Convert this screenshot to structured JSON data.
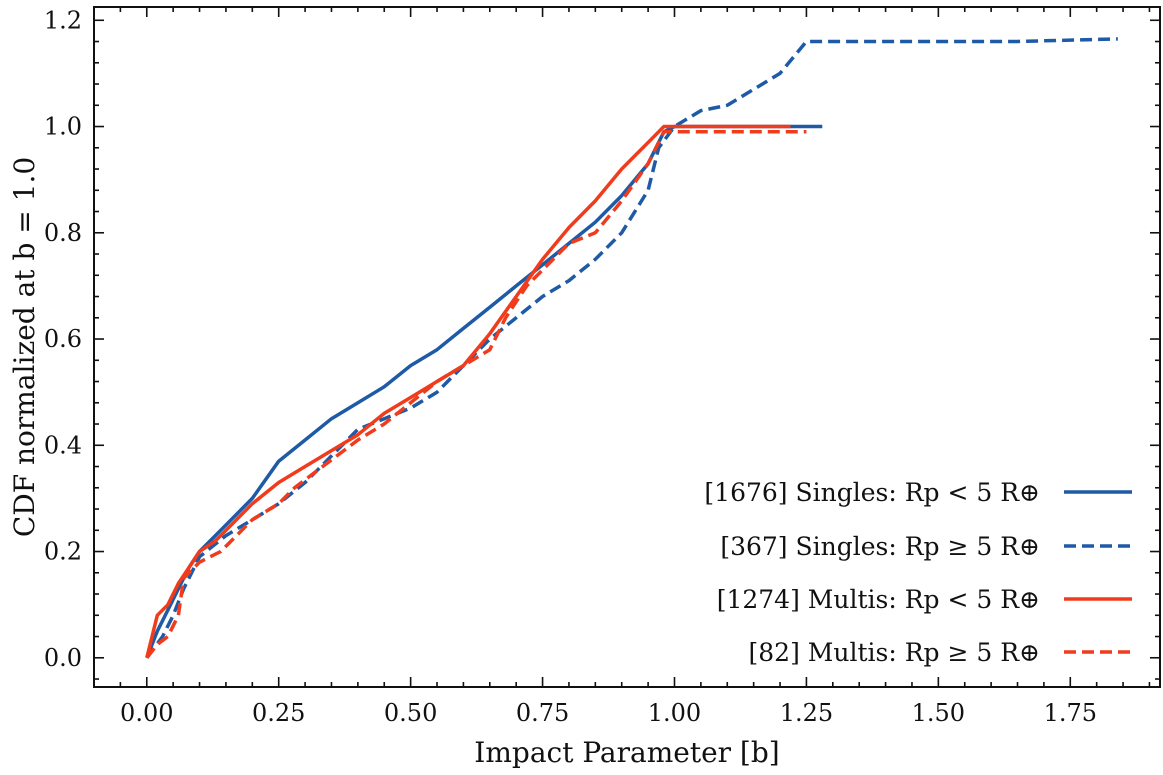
{
  "chart_data": {
    "type": "line",
    "title": "",
    "xlabel": "Impact Parameter [b]",
    "ylabel": "CDF normalized at b = 1.0",
    "xlim": [
      -0.1,
      1.92
    ],
    "ylim": [
      -0.055,
      1.225
    ],
    "x_ticks": [
      0.0,
      0.25,
      0.5,
      0.75,
      1.0,
      1.25,
      1.5,
      1.75
    ],
    "x_tick_labels": [
      "0.00",
      "0.25",
      "0.50",
      "0.75",
      "1.00",
      "1.25",
      "1.50",
      "1.75"
    ],
    "y_ticks": [
      0.0,
      0.2,
      0.4,
      0.6,
      0.8,
      1.0,
      1.2
    ],
    "y_tick_labels": [
      "0.0",
      "0.2",
      "0.4",
      "0.6",
      "0.8",
      "1.0",
      "1.2"
    ],
    "legend_position": "bottom-right",
    "series": [
      {
        "name": "[1676] Singles: Rp < 5 R⊕",
        "color": "#1f5aa6",
        "style": "solid",
        "x": [
          0.0,
          0.02,
          0.04,
          0.06,
          0.08,
          0.1,
          0.13,
          0.16,
          0.2,
          0.25,
          0.3,
          0.35,
          0.4,
          0.45,
          0.5,
          0.55,
          0.6,
          0.65,
          0.7,
          0.75,
          0.8,
          0.85,
          0.9,
          0.95,
          0.98,
          1.0,
          1.1,
          1.2,
          1.28
        ],
        "y": [
          0.0,
          0.05,
          0.09,
          0.13,
          0.17,
          0.2,
          0.23,
          0.26,
          0.3,
          0.37,
          0.41,
          0.45,
          0.48,
          0.51,
          0.55,
          0.58,
          0.62,
          0.66,
          0.7,
          0.74,
          0.78,
          0.82,
          0.87,
          0.93,
          0.99,
          1.0,
          1.0,
          1.0,
          1.0
        ]
      },
      {
        "name": "[367] Singles: Rp ≥ 5 R⊕",
        "color": "#1f5aa6",
        "style": "dashed",
        "x": [
          0.0,
          0.03,
          0.05,
          0.07,
          0.1,
          0.15,
          0.2,
          0.25,
          0.3,
          0.35,
          0.4,
          0.45,
          0.5,
          0.55,
          0.6,
          0.65,
          0.7,
          0.75,
          0.8,
          0.85,
          0.9,
          0.95,
          0.97,
          1.0,
          1.05,
          1.1,
          1.15,
          1.2,
          1.25,
          1.3,
          1.5,
          1.65,
          1.84
        ],
        "y": [
          0.0,
          0.04,
          0.08,
          0.13,
          0.19,
          0.23,
          0.26,
          0.29,
          0.33,
          0.38,
          0.43,
          0.45,
          0.47,
          0.5,
          0.55,
          0.6,
          0.64,
          0.68,
          0.71,
          0.75,
          0.8,
          0.88,
          0.96,
          1.0,
          1.03,
          1.04,
          1.07,
          1.1,
          1.16,
          1.16,
          1.16,
          1.16,
          1.165
        ]
      },
      {
        "name": "[1274] Multis: Rp < 5 R⊕",
        "color": "#f03c1c",
        "style": "solid",
        "x": [
          0.0,
          0.02,
          0.04,
          0.06,
          0.08,
          0.1,
          0.13,
          0.16,
          0.2,
          0.25,
          0.3,
          0.35,
          0.4,
          0.45,
          0.5,
          0.55,
          0.6,
          0.65,
          0.7,
          0.75,
          0.8,
          0.85,
          0.9,
          0.95,
          0.98,
          1.0,
          1.1,
          1.22
        ],
        "y": [
          0.0,
          0.08,
          0.1,
          0.14,
          0.17,
          0.2,
          0.22,
          0.25,
          0.29,
          0.33,
          0.36,
          0.39,
          0.42,
          0.46,
          0.49,
          0.52,
          0.55,
          0.61,
          0.68,
          0.75,
          0.81,
          0.86,
          0.92,
          0.97,
          1.0,
          1.0,
          1.0,
          1.0
        ]
      },
      {
        "name": "[82] Multis: Rp ≥ 5 R⊕",
        "color": "#f03c1c",
        "style": "dashed",
        "x": [
          0.0,
          0.02,
          0.04,
          0.06,
          0.07,
          0.1,
          0.14,
          0.17,
          0.2,
          0.25,
          0.28,
          0.32,
          0.36,
          0.4,
          0.45,
          0.5,
          0.55,
          0.6,
          0.65,
          0.68,
          0.72,
          0.76,
          0.8,
          0.85,
          0.9,
          0.95,
          0.98,
          1.0,
          1.1,
          1.2,
          1.25
        ],
        "y": [
          0.0,
          0.025,
          0.04,
          0.08,
          0.15,
          0.18,
          0.2,
          0.23,
          0.26,
          0.29,
          0.32,
          0.35,
          0.38,
          0.41,
          0.44,
          0.48,
          0.52,
          0.55,
          0.58,
          0.64,
          0.7,
          0.74,
          0.78,
          0.8,
          0.86,
          0.93,
          0.99,
          0.99,
          0.99,
          0.99,
          0.99
        ]
      }
    ]
  }
}
